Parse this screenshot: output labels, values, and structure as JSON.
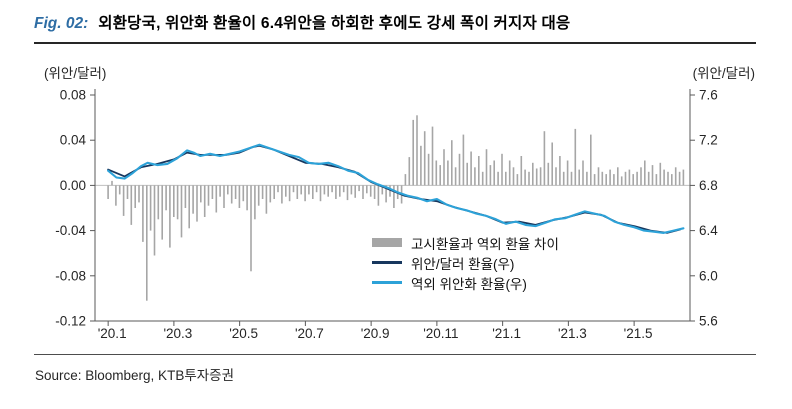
{
  "header": {
    "fig_label": "Fig. 02:",
    "title": "외환당국, 위안화 환율이 6.4위안을 하회한 후에도 강세 폭이 커지자 대응"
  },
  "footer": {
    "source": "Source: Bloomberg, KTB투자증권"
  },
  "chart_data": {
    "type": "combo(bar+line)",
    "x_range": [
      -0.4,
      17.7
    ],
    "x_axis": {
      "ticks": [
        0,
        2,
        4,
        6,
        8,
        10,
        12,
        14,
        16
      ],
      "labels": [
        "'20.1",
        "'20.3",
        "'20.5",
        "'20.7",
        "'20.9",
        "'20.11",
        "'21.1",
        "'21.3",
        "'21.5"
      ]
    },
    "left_axis": {
      "unit": "(위안/달러)",
      "min": -0.12,
      "max": 0.08,
      "ticks": [
        0.08,
        0.04,
        0,
        -0.04,
        -0.08,
        -0.12
      ],
      "labels": [
        "0.08",
        "0.04",
        "0.00",
        "-0.04",
        "-0.08",
        "-0.12"
      ]
    },
    "right_axis": {
      "unit": "(위안/달러)",
      "min": 5.6,
      "max": 7.6,
      "ticks": [
        7.6,
        7.2,
        6.8,
        6.4,
        6.0,
        5.6
      ],
      "labels": [
        "7.6",
        "7.2",
        "6.8",
        "6.4",
        "6.0",
        "5.6"
      ]
    },
    "grid": {
      "zero_line": true,
      "zero_line_color": "#bfbfbf"
    },
    "axis_color": "#595959",
    "bar_series": {
      "name": "고시환율과 역외 환율 차이",
      "axis": "left",
      "color": "#a6a6a6",
      "x_start": 0,
      "x_end": 17.5,
      "values": [
        -0.012,
        0.004,
        -0.018,
        -0.008,
        -0.027,
        -0.012,
        -0.035,
        -0.02,
        -0.015,
        -0.05,
        -0.102,
        -0.04,
        -0.062,
        -0.03,
        -0.048,
        -0.022,
        -0.055,
        -0.028,
        -0.03,
        -0.046,
        -0.02,
        -0.038,
        -0.025,
        -0.032,
        -0.015,
        -0.028,
        -0.018,
        -0.012,
        -0.024,
        -0.01,
        -0.02,
        -0.008,
        -0.016,
        -0.012,
        -0.02,
        -0.014,
        -0.022,
        -0.076,
        -0.03,
        -0.018,
        -0.012,
        -0.025,
        -0.015,
        -0.012,
        -0.006,
        -0.016,
        -0.01,
        -0.014,
        -0.006,
        -0.012,
        -0.008,
        -0.014,
        -0.008,
        -0.012,
        -0.006,
        -0.014,
        -0.008,
        -0.01,
        -0.006,
        -0.012,
        -0.01,
        -0.006,
        -0.013,
        -0.008,
        -0.011,
        -0.005,
        -0.012,
        -0.007,
        -0.01,
        -0.012,
        -0.018,
        -0.008,
        -0.015,
        -0.01,
        -0.02,
        -0.012,
        -0.016,
        0.01,
        0.025,
        0.058,
        0.062,
        0.035,
        0.048,
        0.028,
        0.052,
        0.022,
        0.018,
        0.032,
        0.022,
        0.04,
        0.016,
        0.028,
        0.045,
        0.02,
        0.03,
        0.016,
        0.026,
        0.012,
        0.032,
        0.018,
        0.022,
        0.012,
        0.028,
        0.012,
        0.022,
        0.016,
        0.01,
        0.026,
        0.014,
        0.012,
        0.02,
        0.015,
        0.016,
        0.048,
        0.02,
        0.038,
        0.016,
        0.026,
        0.012,
        0.022,
        0.012,
        0.05,
        0.014,
        0.022,
        0.012,
        0.045,
        0.01,
        0.016,
        0.012,
        0.01,
        0.014,
        0.01,
        0.016,
        0.008,
        0.012,
        0.014,
        0.01,
        0.012,
        0.016,
        0.022,
        0.012,
        0.018,
        0.01,
        0.02,
        0.014,
        0.012,
        0.01,
        0.016,
        0.012,
        0.014
      ]
    },
    "line_series": [
      {
        "name": "위안/달러 환율(우)",
        "axis": "right",
        "color": "#17375e",
        "points": [
          [
            0,
            6.94
          ],
          [
            0.5,
            6.88
          ],
          [
            1.0,
            6.96
          ],
          [
            1.5,
            6.99
          ],
          [
            2.0,
            7.03
          ],
          [
            2.4,
            7.09
          ],
          [
            2.8,
            7.07
          ],
          [
            3.2,
            7.07
          ],
          [
            3.6,
            7.07
          ],
          [
            4.0,
            7.09
          ],
          [
            4.4,
            7.14
          ],
          [
            4.6,
            7.15
          ],
          [
            5.0,
            7.12
          ],
          [
            5.5,
            7.06
          ],
          [
            6.0,
            7.0
          ],
          [
            6.5,
            6.99
          ],
          [
            7.0,
            6.96
          ],
          [
            7.5,
            6.92
          ],
          [
            8.0,
            6.83
          ],
          [
            8.5,
            6.77
          ],
          [
            9.0,
            6.71
          ],
          [
            9.5,
            6.68
          ],
          [
            10.0,
            6.66
          ],
          [
            10.5,
            6.61
          ],
          [
            11.0,
            6.57
          ],
          [
            11.5,
            6.53
          ],
          [
            12.0,
            6.47
          ],
          [
            12.5,
            6.48
          ],
          [
            13.0,
            6.45
          ],
          [
            13.5,
            6.49
          ],
          [
            14.0,
            6.52
          ],
          [
            14.5,
            6.56
          ],
          [
            15.0,
            6.54
          ],
          [
            15.5,
            6.47
          ],
          [
            16.0,
            6.44
          ],
          [
            16.5,
            6.4
          ],
          [
            17.0,
            6.38
          ],
          [
            17.4,
            6.41
          ]
        ]
      },
      {
        "name": "역외 위안화 환율(우)",
        "axis": "right",
        "color": "#2da2d8",
        "points": [
          [
            0,
            6.93
          ],
          [
            0.25,
            6.87
          ],
          [
            0.5,
            6.86
          ],
          [
            0.75,
            6.91
          ],
          [
            1.0,
            6.97
          ],
          [
            1.2,
            7.0
          ],
          [
            1.5,
            6.98
          ],
          [
            1.8,
            6.99
          ],
          [
            2.1,
            7.04
          ],
          [
            2.4,
            7.11
          ],
          [
            2.6,
            7.09
          ],
          [
            2.8,
            7.06
          ],
          [
            3.1,
            7.08
          ],
          [
            3.4,
            7.06
          ],
          [
            3.7,
            7.08
          ],
          [
            4.0,
            7.1
          ],
          [
            4.3,
            7.13
          ],
          [
            4.6,
            7.16
          ],
          [
            4.9,
            7.13
          ],
          [
            5.2,
            7.1
          ],
          [
            5.5,
            7.07
          ],
          [
            5.8,
            7.05
          ],
          [
            6.1,
            7.0
          ],
          [
            6.4,
            6.99
          ],
          [
            6.7,
            7.0
          ],
          [
            7.0,
            6.97
          ],
          [
            7.3,
            6.93
          ],
          [
            7.6,
            6.91
          ],
          [
            7.9,
            6.85
          ],
          [
            8.2,
            6.81
          ],
          [
            8.5,
            6.78
          ],
          [
            8.8,
            6.74
          ],
          [
            9.1,
            6.71
          ],
          [
            9.4,
            6.69
          ],
          [
            9.7,
            6.66
          ],
          [
            10.0,
            6.68
          ],
          [
            10.3,
            6.63
          ],
          [
            10.6,
            6.6
          ],
          [
            10.9,
            6.58
          ],
          [
            11.2,
            6.55
          ],
          [
            11.5,
            6.53
          ],
          [
            11.8,
            6.5
          ],
          [
            12.1,
            6.46
          ],
          [
            12.4,
            6.48
          ],
          [
            12.7,
            6.45
          ],
          [
            13.0,
            6.44
          ],
          [
            13.3,
            6.47
          ],
          [
            13.6,
            6.5
          ],
          [
            13.9,
            6.51
          ],
          [
            14.2,
            6.54
          ],
          [
            14.5,
            6.57
          ],
          [
            14.8,
            6.55
          ],
          [
            15.1,
            6.53
          ],
          [
            15.4,
            6.48
          ],
          [
            15.7,
            6.45
          ],
          [
            16.0,
            6.43
          ],
          [
            16.3,
            6.4
          ],
          [
            16.6,
            6.39
          ],
          [
            16.9,
            6.38
          ],
          [
            17.2,
            6.4
          ],
          [
            17.5,
            6.42
          ]
        ]
      }
    ],
    "legend": [
      {
        "label": "고시환율과 역외 환율 차이",
        "swatch": "bar",
        "color": "#a6a6a6"
      },
      {
        "label": "위안/달러 환율(우)",
        "swatch": "line",
        "color": "#17375e"
      },
      {
        "label": "역외 위안화 환율(우)",
        "swatch": "line",
        "color": "#2da2d8"
      }
    ]
  }
}
